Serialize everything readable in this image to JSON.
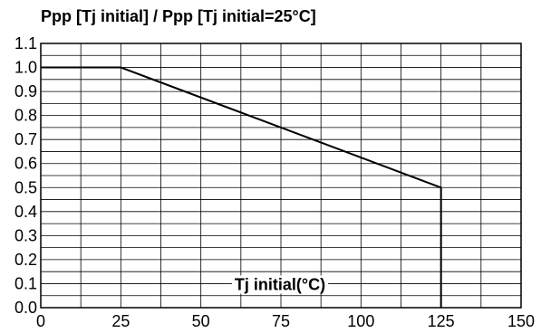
{
  "chart_data": {
    "type": "line",
    "title": "Ppp [Tj initial] / Ppp [Tj initial=25°C]",
    "xlabel": "Tj initial(°C)",
    "ylabel": "",
    "xlim": [
      0,
      150
    ],
    "ylim": [
      0.0,
      1.1
    ],
    "x_ticks": [
      0,
      25,
      50,
      75,
      100,
      125,
      150
    ],
    "x_tick_labels": [
      "0",
      "25",
      "50",
      "75",
      "100",
      "125",
      "150"
    ],
    "y_ticks": [
      0.0,
      0.1,
      0.2,
      0.3,
      0.4,
      0.5,
      0.6,
      0.7,
      0.8,
      0.9,
      1.0,
      1.1
    ],
    "y_tick_labels": [
      "0.0",
      "0.1",
      "0.2",
      "0.3",
      "0.4",
      "0.5",
      "0.6",
      "0.7",
      "0.8",
      "0.9",
      "1.0",
      "1.1"
    ],
    "x_minor_step": 12.5,
    "y_minor_step": 0.05,
    "grid": true,
    "series": [
      {
        "x": [
          0,
          25,
          125,
          125
        ],
        "y": [
          1.0,
          1.0,
          0.5,
          0.0
        ],
        "color": "#000000"
      }
    ]
  }
}
